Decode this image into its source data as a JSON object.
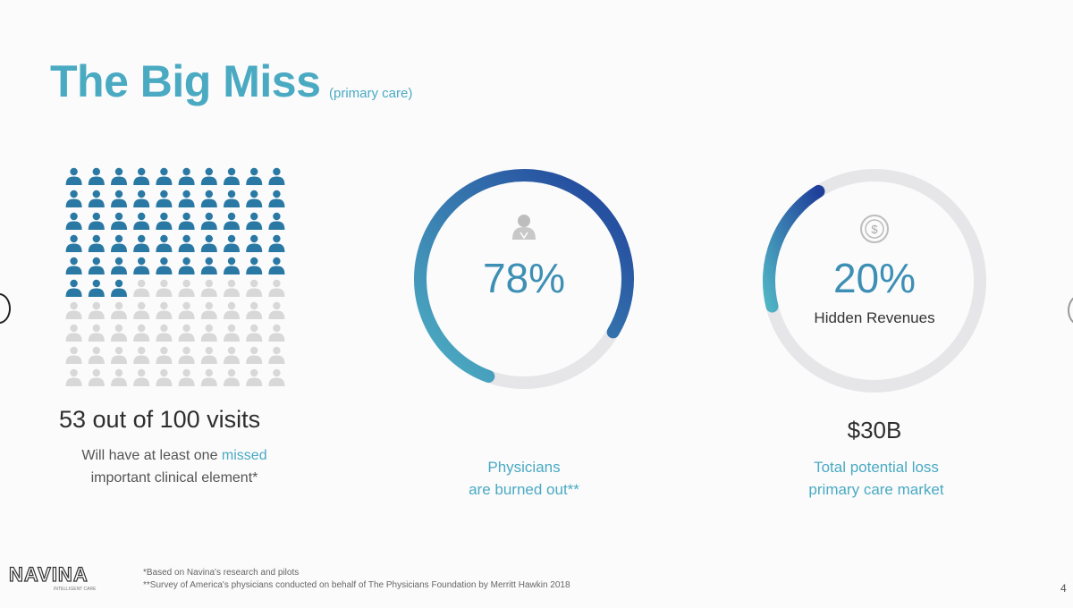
{
  "slide": {
    "title": "The Big Miss",
    "subtitle": "(primary care)",
    "page_number": "4"
  },
  "visits": {
    "total": 100,
    "highlighted": 53,
    "headline": "53 out of 100 visits",
    "desc_part1": "Will have at least one ",
    "desc_highlight": "missed",
    "desc_part2": " important clinical element*",
    "colors": {
      "highlighted": "#2a79a4",
      "rest": "#d8d8d8"
    }
  },
  "physicians": {
    "percent_label": "78%",
    "percent_value": 0.78,
    "icon": "user-icon",
    "caption_line1": "Physicians",
    "caption_line2": "are burned out**"
  },
  "revenue": {
    "percent_label": "20%",
    "percent_value": 0.2,
    "icon": "dollar-coin-icon",
    "ring_label": "Hidden Revenues",
    "amount": "$30B",
    "caption_line1": "Total potential loss",
    "caption_line2": "primary care market"
  },
  "colors": {
    "title": "#4aaac2",
    "ring_track": "#e6e6e8",
    "ring_start": "#4fb3c4",
    "ring_end": "#1f3f9a"
  },
  "footer": {
    "logo": "NAVINA",
    "logo_tagline": "INTELLIGENT CARE",
    "footnote1": "*Based on Navina's research and pilots",
    "footnote2": "**Survey of America's physicians conducted on behalf of The Physicians Foundation by Merritt Hawkin 2018"
  }
}
